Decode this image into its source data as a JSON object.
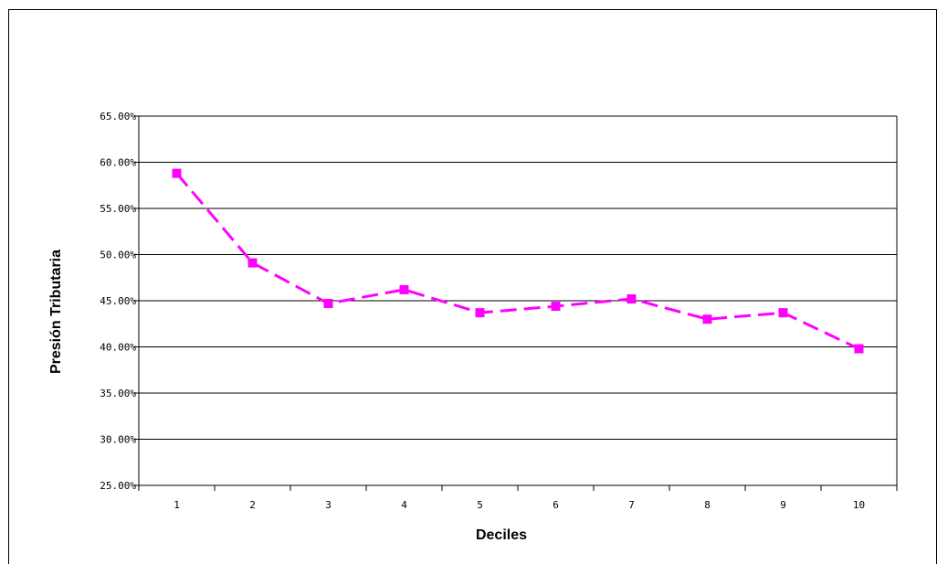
{
  "chart_data": {
    "type": "line",
    "title": "",
    "xlabel": "Deciles",
    "ylabel": "Presión Tributaria",
    "categories": [
      "1",
      "2",
      "3",
      "4",
      "5",
      "6",
      "7",
      "8",
      "9",
      "10"
    ],
    "series": [
      {
        "values": [
          58.8,
          49.1,
          44.7,
          46.2,
          43.7,
          44.4,
          45.2,
          43.0,
          43.7,
          39.8
        ],
        "color": "#ff00ff",
        "line_style": "dashed",
        "marker": "square"
      }
    ],
    "ylim": [
      25,
      65
    ],
    "yticks": [
      25,
      30,
      35,
      40,
      45,
      50,
      55,
      60,
      65
    ],
    "ytick_labels": [
      "25.00%",
      "30.00%",
      "35.00%",
      "40.00%",
      "45.00%",
      "50.00%",
      "55.00%",
      "60.00%",
      "65.00%"
    ],
    "grid": "horizontal",
    "legend": "none"
  }
}
